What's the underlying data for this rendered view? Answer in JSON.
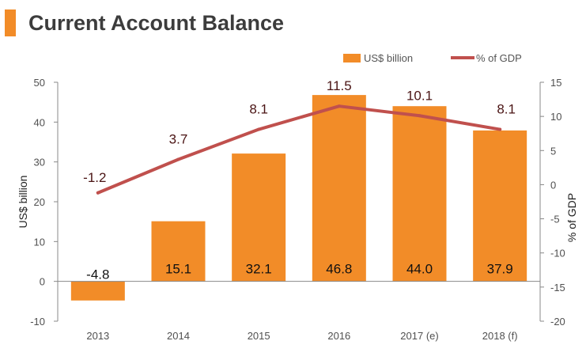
{
  "title": "Current Account Balance",
  "colors": {
    "accent": "#f28c28",
    "bar": "#f28c28",
    "line": "#c0504d"
  },
  "chart_data": {
    "type": "bar",
    "categories": [
      "2013",
      "2014",
      "2015",
      "2016",
      "2017 (e)",
      "2018 (f)"
    ],
    "series": [
      {
        "name": "US$ billion",
        "type": "bar",
        "axis": "left",
        "values": [
          -4.8,
          15.1,
          32.1,
          46.8,
          44.0,
          37.9
        ],
        "labels": [
          "-4.8",
          "15.1",
          "32.1",
          "46.8",
          "44.0",
          "37.9"
        ]
      },
      {
        "name": "% of GDP",
        "type": "line",
        "axis": "right",
        "values": [
          -1.2,
          3.7,
          8.1,
          11.5,
          10.1,
          8.1
        ],
        "labels": [
          "-1.2",
          "3.7",
          "8.1",
          "11.5",
          "10.1",
          "8.1"
        ]
      }
    ],
    "ylabel": "US$ billion",
    "y2label": "% of GDP",
    "ylim": [
      -10,
      50
    ],
    "yticks": [
      -10,
      0,
      10,
      20,
      30,
      40,
      50
    ],
    "y2lim": [
      -20,
      15
    ],
    "y2ticks": [
      -20,
      -15,
      -10,
      -5,
      0,
      5,
      10,
      15
    ],
    "legend": "top-right",
    "grid": false
  }
}
